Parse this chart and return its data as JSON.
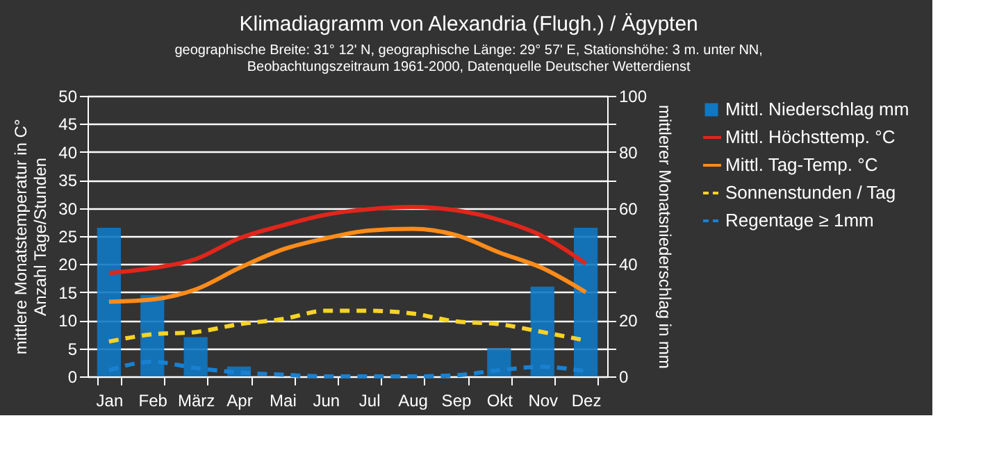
{
  "chart_data": {
    "type": "bar",
    "title": "Klimadiagramm von Alexandria (Flugh.) / Ägypten",
    "subtitle": "geographische Breite: 31° 12' N, geographische Länge: 29° 57' E, Stationshöhe: 3 m. unter NN,\nBeobachtungszeitraum 1961-2000, Datenquelle Deutscher Wetterdienst",
    "ylabel": "mittlere Monatstemperatur in C°\nAnzahl Tage/Stunden",
    "y2label": "mittlerer Monatsniederschlag in mm",
    "categories": [
      "Jan",
      "Feb",
      "März",
      "Apr",
      "Mai",
      "Jun",
      "Jul",
      "Aug",
      "Sep",
      "Okt",
      "Nov",
      "Dez"
    ],
    "series": [
      {
        "name": "Mittl. Niederschlag mm",
        "axis": "y2",
        "color": "#0f78c4",
        "values": [
          53,
          29,
          14,
          3.5,
          null,
          0,
          0,
          0,
          null,
          10,
          32,
          53
        ]
      },
      {
        "name": "Mittl. Höchsttemp. °C",
        "type": "line",
        "color": "#e0261b",
        "line_style": "solid",
        "values": [
          18.4,
          19.3,
          20.9,
          24.6,
          26.9,
          28.8,
          29.8,
          30.2,
          29.6,
          27.9,
          25,
          20.1
        ]
      },
      {
        "name": "Mittl. Tag-Temp. °C",
        "type": "line",
        "color": "#ff8c1a",
        "line_style": "solid",
        "values": [
          13.3,
          13.7,
          15.5,
          19.3,
          22.6,
          24.6,
          26,
          26.3,
          25.2,
          22.1,
          19.3,
          15
        ]
      },
      {
        "name": "Sonnenstunden / Tag",
        "type": "line",
        "color": "#f5d327",
        "line_style": "dashed",
        "values": [
          6.2,
          7.5,
          7.9,
          9.3,
          10.2,
          11.7,
          11.7,
          11.2,
          9.8,
          9.3,
          7.9,
          6.4
        ]
      },
      {
        "name": "Regentage ≥ 1mm",
        "type": "line",
        "color": "#1a80d0",
        "line_style": "dashed",
        "values": [
          1.1,
          2.6,
          1.5,
          0.7,
          0.3,
          0,
          0,
          0,
          0.2,
          1.1,
          1.7,
          0.9
        ]
      }
    ],
    "ylim": [
      0,
      50
    ],
    "yticks": [
      0,
      5,
      10,
      15,
      20,
      25,
      30,
      35,
      40,
      45,
      50
    ],
    "y2lim": [
      0,
      100
    ],
    "y2ticks": [
      0,
      {
        "value": 10,
        "label": null
      },
      20,
      {
        "value": 30,
        "label": null
      },
      40,
      {
        "value": 50,
        "label": null
      },
      60,
      {
        "value": 70,
        "label": null
      },
      80,
      {
        "value": 90,
        "label": null
      },
      100
    ],
    "grid": "y",
    "legend": "right"
  }
}
